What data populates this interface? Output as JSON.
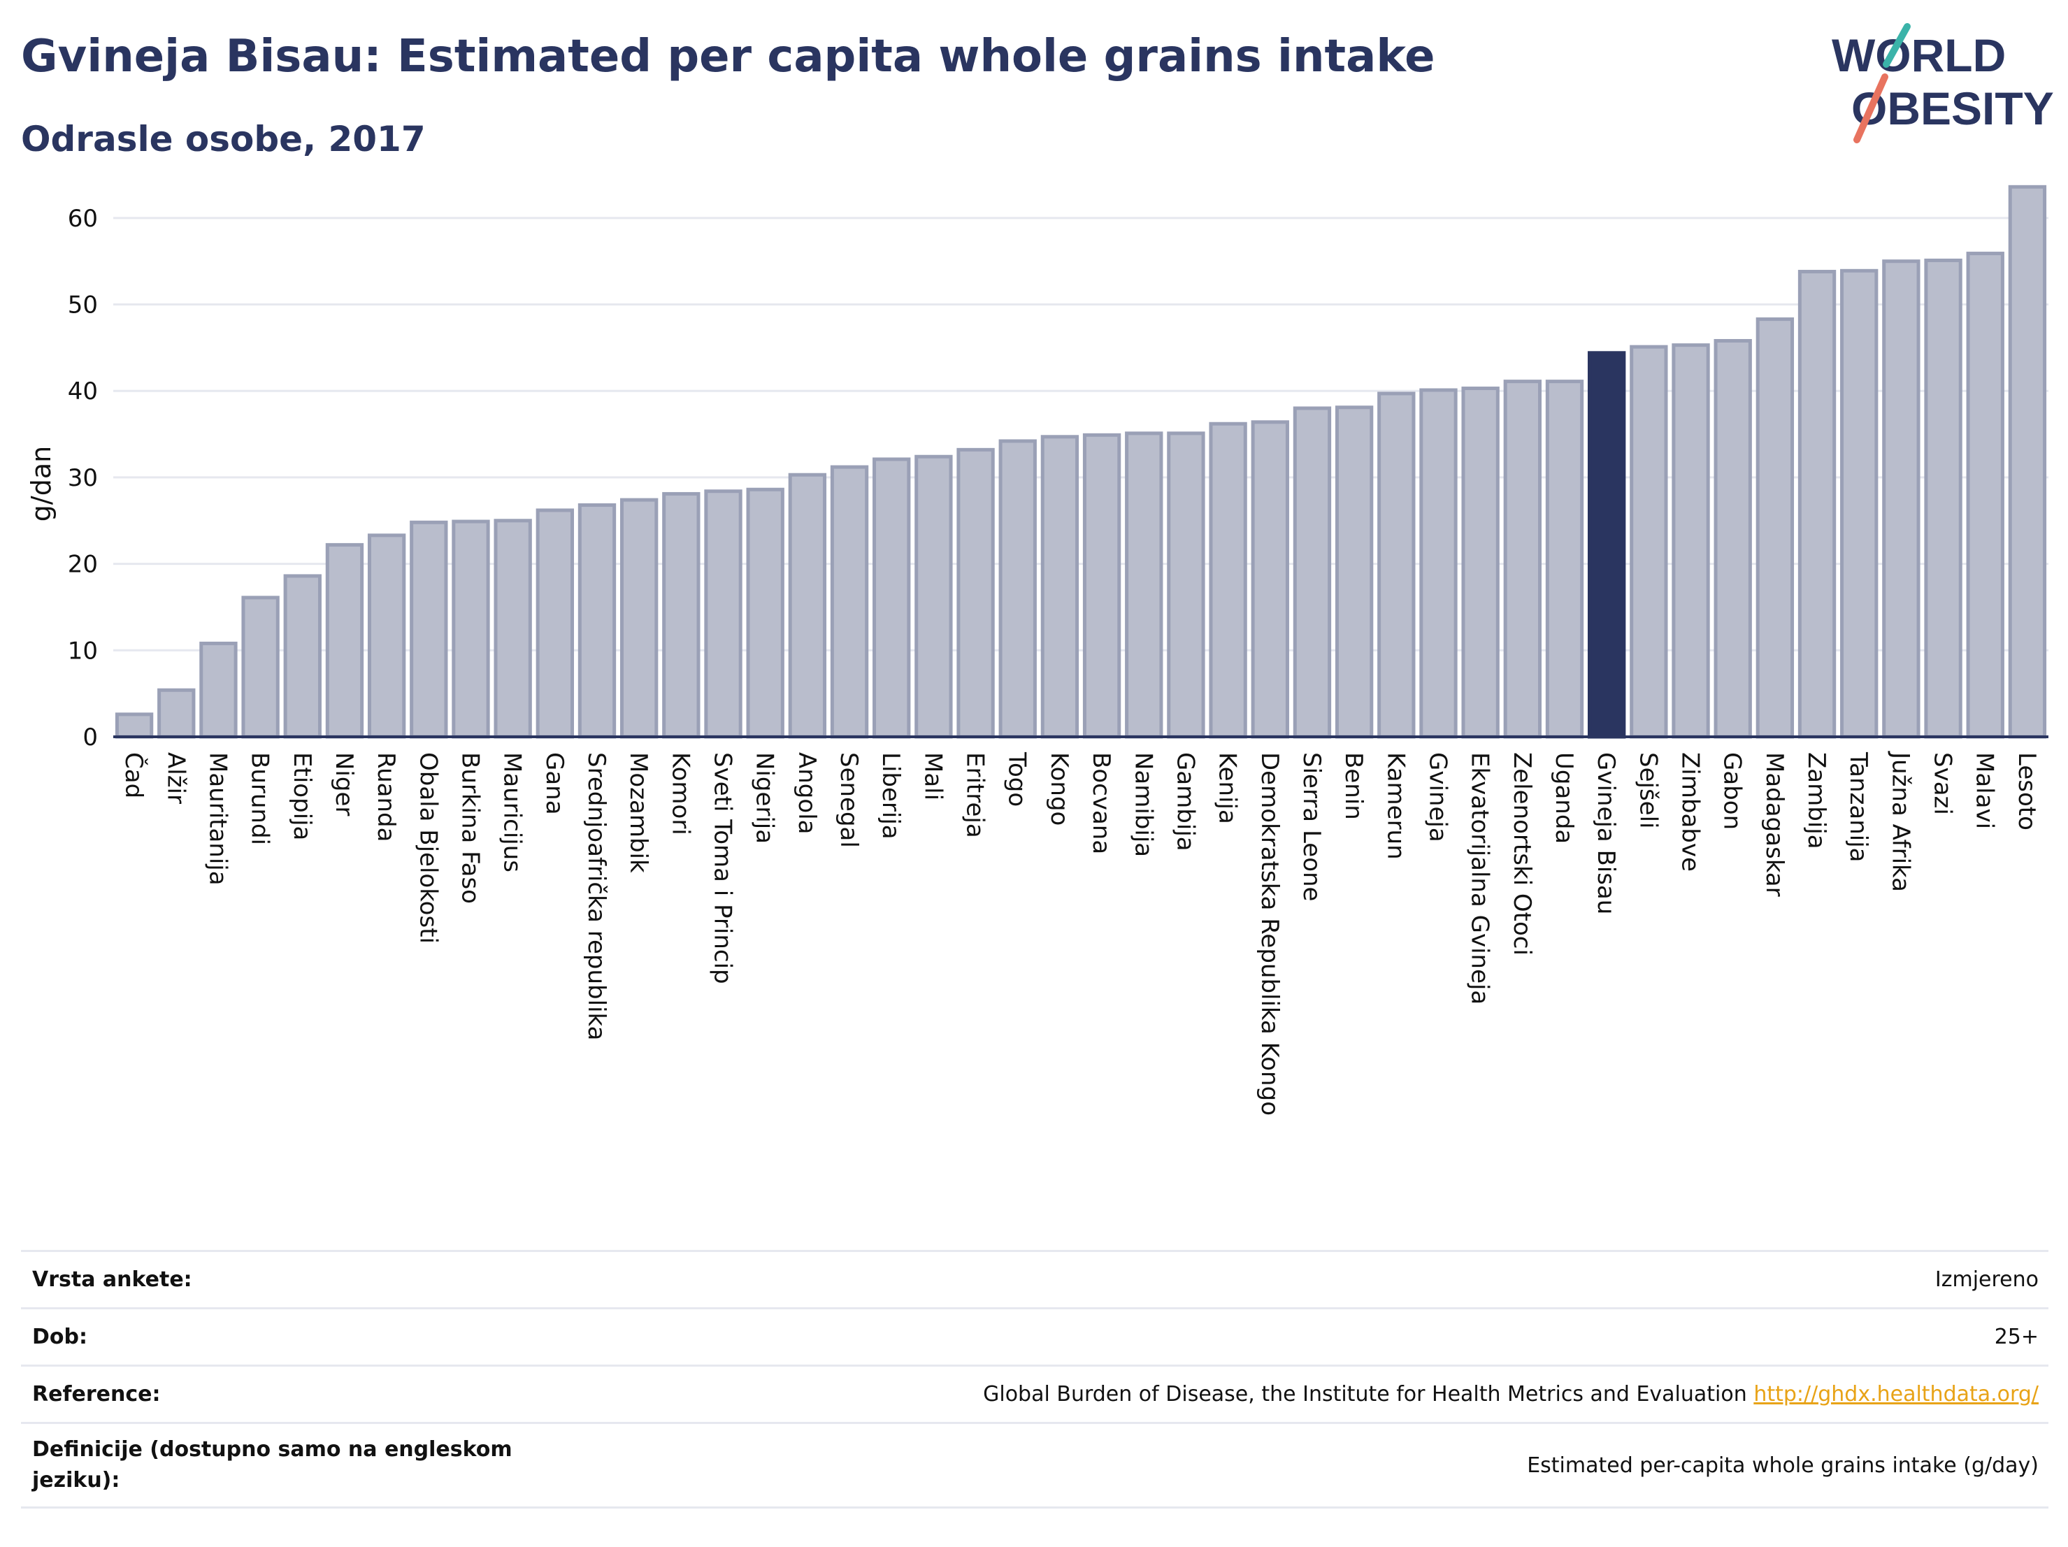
{
  "header": {
    "title": "Gvineja Bisau: Estimated per capita whole grains intake",
    "subtitle": "Odrasle osobe, 2017",
    "logo_text_line1": "WORLD",
    "logo_text_line2": "OBESITY"
  },
  "colors": {
    "bar_default": "#b9bdcc",
    "bar_default_stroke": "#9aa0b6",
    "bar_highlight": "#2a3560",
    "text_dark": "#2a3560",
    "link": "#e8a317",
    "logo_teal": "#3bb3a9",
    "logo_coral": "#e8735f"
  },
  "chart_data": {
    "type": "bar",
    "ylabel": "g/dan",
    "ylim": [
      0,
      65
    ],
    "yticks": [
      0,
      10,
      20,
      30,
      40,
      50,
      60
    ],
    "grid": true,
    "highlight": "Gvineja Bisau",
    "categories": [
      "Čad",
      "Alžir",
      "Mauritanija",
      "Burundi",
      "Etiopija",
      "Niger",
      "Ruanda",
      "Obala Bjelokosti",
      "Burkina Faso",
      "Mauricijus",
      "Gana",
      "Srednjoafrička republika",
      "Mozambik",
      "Komori",
      "Sveti Toma i Princip",
      "Nigerija",
      "Angola",
      "Senegal",
      "Liberija",
      "Mali",
      "Eritreja",
      "Togo",
      "Kongo",
      "Bocvana",
      "Namibija",
      "Gambija",
      "Kenija",
      "Demokratska Republika Kongo",
      "Sierra Leone",
      "Benin",
      "Kamerun",
      "Gvineja",
      "Ekvatorijalna Gvineja",
      "Zelenortski Otoci",
      "Uganda",
      "Gvineja Bisau",
      "Sejšeli",
      "Zimbabve",
      "Gabon",
      "Madagaskar",
      "Zambija",
      "Tanzanija",
      "Južna Afrika",
      "Svazi",
      "Malavi",
      "Lesoto"
    ],
    "values": [
      2.6,
      5.4,
      10.8,
      16.1,
      18.6,
      22.2,
      23.3,
      24.8,
      24.9,
      25.0,
      26.2,
      26.8,
      27.4,
      28.1,
      28.4,
      28.6,
      30.3,
      31.2,
      32.1,
      32.4,
      33.2,
      34.2,
      34.7,
      34.9,
      35.1,
      35.1,
      36.2,
      36.4,
      38.0,
      38.1,
      39.7,
      40.1,
      40.3,
      41.1,
      41.1,
      44.4,
      45.1,
      45.3,
      45.8,
      48.3,
      53.8,
      53.9,
      55.0,
      55.1,
      55.9,
      63.6
    ]
  },
  "meta": [
    {
      "key": "Vrsta ankete:",
      "value": "Izmjereno"
    },
    {
      "key": "Dob:",
      "value": "25+"
    },
    {
      "key": "Reference:",
      "value": "Global Burden of Disease, the Institute for Health Metrics and Evaluation",
      "link": "http://ghdx.healthdata.org/"
    },
    {
      "key": "Definicije (dostupno samo na engleskom jeziku):",
      "value": "Estimated per-capita whole grains intake (g/day)"
    }
  ]
}
